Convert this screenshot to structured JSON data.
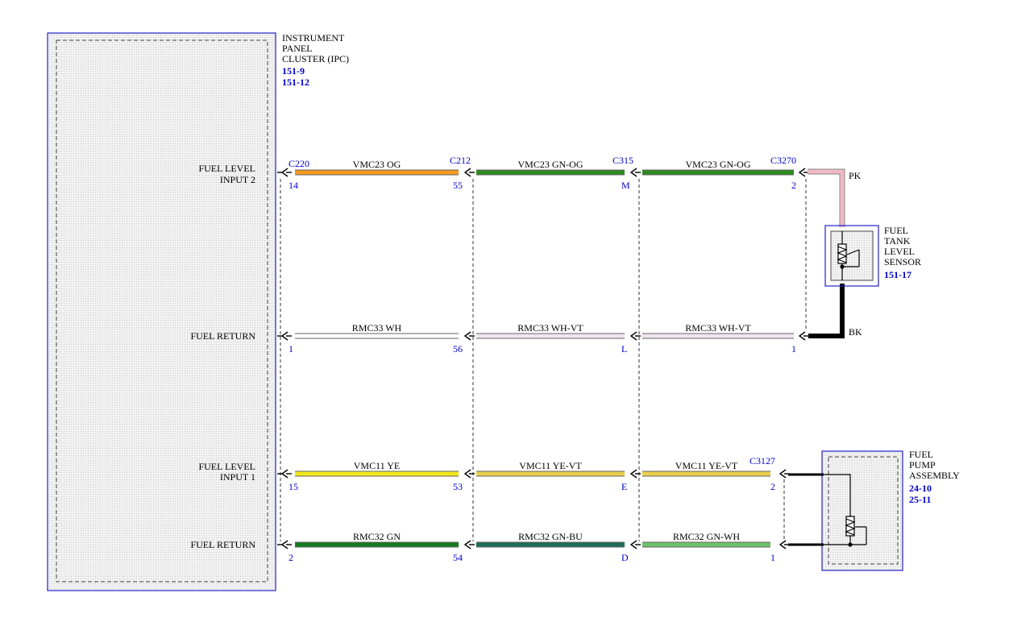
{
  "colors": {
    "OG": "#f59a1e",
    "GN-OG": "#2e8b1f",
    "WH": "#ffffff",
    "WH-VT": "#f0e4f0",
    "YE": "#f2e81c",
    "YE-VT": "#eacf4a",
    "GN": "#157a1f",
    "GN-BU": "#1f6b5a",
    "GN-WH": "#6cc36c",
    "PK": "#f2b8c6",
    "BK": "#000000",
    "connector_text": "#0000cc",
    "module_border": "#2222cc"
  },
  "ipc": {
    "name_lines": [
      "INSTRUMENT",
      "PANEL",
      "CLUSTER (IPC)"
    ],
    "refs": [
      "151-9",
      "151-12"
    ]
  },
  "fuel_tank_sensor": {
    "name_lines": [
      "FUEL",
      "TANK",
      "LEVEL",
      "SENSOR"
    ],
    "refs": [
      "151-17"
    ]
  },
  "fuel_pump": {
    "name_lines": [
      "FUEL",
      "PUMP",
      "ASSEMBLY"
    ],
    "refs": [
      "24-10",
      "25-11"
    ]
  },
  "pin_labels": [
    [
      "FUEL LEVEL",
      "INPUT 2"
    ],
    [
      "FUEL RETURN"
    ],
    [
      "FUEL LEVEL",
      "INPUT 1"
    ],
    [
      "FUEL RETURN"
    ]
  ],
  "connectors": {
    "ipc": "C220",
    "c2": "C212",
    "c3": "C315",
    "sensor": "C3270",
    "pump": "C3127"
  },
  "circuits": [
    {
      "pins": [
        "14",
        "55",
        "M",
        "2"
      ],
      "segments": [
        {
          "circuit": "VMC23",
          "color": "OG"
        },
        {
          "circuit": "VMC23",
          "color": "GN-OG"
        },
        {
          "circuit": "VMC23",
          "color": "GN-OG"
        }
      ]
    },
    {
      "pins": [
        "1",
        "56",
        "L",
        "1"
      ],
      "segments": [
        {
          "circuit": "RMC33",
          "color": "WH"
        },
        {
          "circuit": "RMC33",
          "color": "WH-VT"
        },
        {
          "circuit": "RMC33",
          "color": "WH-VT"
        }
      ]
    },
    {
      "pins": [
        "15",
        "53",
        "E",
        "2"
      ],
      "segments": [
        {
          "circuit": "VMC11",
          "color": "YE"
        },
        {
          "circuit": "VMC11",
          "color": "YE-VT"
        },
        {
          "circuit": "VMC11",
          "color": "YE-VT"
        }
      ]
    },
    {
      "pins": [
        "2",
        "54",
        "D",
        "1"
      ],
      "segments": [
        {
          "circuit": "RMC32",
          "color": "GN"
        },
        {
          "circuit": "RMC32",
          "color": "GN-BU"
        },
        {
          "circuit": "RMC32",
          "color": "GN-WH"
        }
      ]
    }
  ],
  "sensor_wires": {
    "top": "PK",
    "bottom": "BK"
  }
}
